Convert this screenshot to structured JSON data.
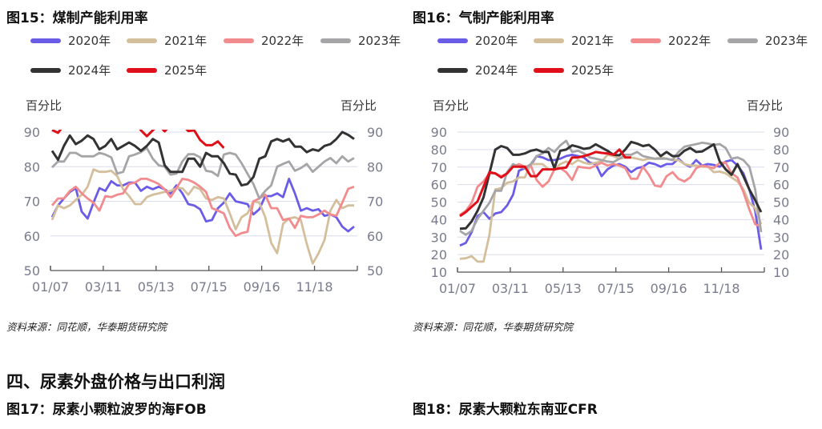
{
  "charts_text": [
    {
      "title": "图15：煤制产能利用率",
      "source": "资料来源：同花顺，华泰期货研究院"
    },
    {
      "title": "图16：气制产能利用率",
      "source": "资料来源：同花顺，华泰期货研究院"
    }
  ],
  "section_heading": "四、尿素外盘价格与出口利润",
  "next_figures": [
    "图17：尿素小颗粒波罗的海FOB",
    "图18：尿素大颗粒东南亚CFR"
  ],
  "legend": [
    {
      "name": "2020年",
      "color": "#6b5ce7"
    },
    {
      "name": "2021年",
      "color": "#d4bf9c"
    },
    {
      "name": "2022年",
      "color": "#f28b8e"
    },
    {
      "name": "2023年",
      "color": "#a5a5a8"
    },
    {
      "name": "2024年",
      "color": "#333333"
    },
    {
      "name": "2025年",
      "color": "#e0101a"
    }
  ],
  "chart_data": [
    {
      "type": "line",
      "title": "图15：煤制产能利用率",
      "ylabel": "百分比",
      "ylabel_right": "百分比",
      "ylim": [
        50,
        90
      ],
      "yticks": [
        90,
        80,
        70,
        60,
        50
      ],
      "xticks": [
        "01/07",
        "03/11",
        "05/13",
        "07/15",
        "09/16",
        "11/18"
      ],
      "x_unit": "weekly index from 01/07",
      "grid": true,
      "legend_position": "top",
      "series": [
        {
          "name": "2020年",
          "values": [
            65.4,
            68.8,
            70.8,
            72.7,
            73.8,
            67,
            65,
            69.6,
            73.8,
            73,
            75.8,
            74.6,
            74.6,
            75.4,
            75.4,
            73,
            74.2,
            73.5,
            74.2,
            73.5,
            72.3,
            74.6,
            72.3,
            69.2,
            68.8,
            67.7,
            64.2,
            64.6,
            68,
            69.6,
            72.3,
            70,
            69.6,
            69.2,
            66.2,
            67.7,
            71.5,
            71.5,
            72.3,
            71.2,
            76.5,
            72.3,
            67.3,
            68,
            67.3,
            67.7,
            65.8,
            66.2,
            65.4,
            62.7,
            61.3,
            62.7
          ]
        },
        {
          "name": "2021年",
          "values": [
            64.6,
            68.8,
            68,
            68.8,
            70.4,
            71.9,
            74.2,
            79.2,
            78.5,
            78.5,
            78.8,
            77.3,
            73.5,
            71.5,
            69.2,
            69.2,
            71.2,
            71.9,
            72.3,
            72.7,
            73,
            73.8,
            73.8,
            71.9,
            74.2,
            73.5,
            70.8,
            70.4,
            71.2,
            70.8,
            66.5,
            61.9,
            65.4,
            66.5,
            70,
            69.6,
            65.4,
            58,
            55,
            63.5,
            65,
            65.4,
            64.6,
            57.7,
            52,
            55,
            58.8,
            67.3,
            70.4,
            68,
            68.8,
            68.8
          ]
        },
        {
          "name": "2022年",
          "values": [
            68.8,
            70.8,
            70.8,
            73,
            74.2,
            72.3,
            70.8,
            69.6,
            67.3,
            71.5,
            71.2,
            71.9,
            72.3,
            75,
            75.4,
            76.5,
            76.5,
            75.8,
            75,
            73.5,
            71.2,
            73.8,
            76.5,
            76.2,
            75.4,
            74.2,
            72.7,
            68,
            67.3,
            66.5,
            62.3,
            60,
            60.8,
            61.2,
            70,
            70.8,
            71.9,
            68,
            68,
            64.6,
            65,
            62.3,
            65.8,
            65.4,
            65.4,
            66.2,
            67.3,
            66.2,
            65.8,
            69.6,
            73.6,
            74.2
          ]
        },
        {
          "name": "2023年",
          "values": [
            79.8,
            81.5,
            81.5,
            84,
            84,
            83,
            83,
            83,
            84,
            83.5,
            82.7,
            78,
            78.5,
            83,
            83.5,
            84.2,
            85.4,
            82.3,
            80.4,
            80,
            77.7,
            78,
            81.5,
            83.6,
            83.6,
            82.7,
            78.8,
            78.5,
            77.3,
            83.5,
            84,
            83.5,
            81,
            78,
            75,
            70.8,
            73,
            74.6,
            80,
            80.8,
            81.5,
            78.8,
            79.6,
            80.8,
            78.5,
            80,
            81.5,
            82.5,
            81,
            83,
            81.5,
            82.5
          ]
        },
        {
          "name": "2024年",
          "values": [
            84.6,
            82,
            86,
            89,
            86.5,
            87.5,
            89,
            88,
            85,
            86,
            88,
            85,
            86,
            87,
            86,
            84.6,
            86,
            88,
            87,
            80.4,
            78.5,
            78.5,
            78.5,
            82.3,
            82.3,
            80,
            84,
            83,
            83,
            81,
            78,
            77.7,
            74.6,
            75,
            77,
            82.3,
            83,
            87.3,
            88,
            87.3,
            88,
            85.8,
            85.8,
            84.2,
            85,
            84.6,
            86,
            86.5,
            88,
            90,
            89.2,
            88
          ]
        },
        {
          "name": "2025年",
          "values": [
            90.6,
            89.8,
            92,
            92.5,
            93,
            92.5,
            92,
            93,
            92.5,
            92,
            93,
            92.5,
            92,
            92.5,
            93,
            90.5,
            88.8,
            90.5,
            92,
            90.2,
            92,
            93,
            92,
            90.3,
            90.5,
            87.7,
            86.2,
            86.2,
            87.3,
            85.4
          ]
        }
      ]
    },
    {
      "type": "line",
      "title": "图16：气制产能利用率",
      "ylabel": "百分比",
      "ylabel_right": "百分比",
      "ylim": [
        10,
        90
      ],
      "yticks": [
        90,
        80,
        70,
        60,
        50,
        40,
        30,
        20,
        10
      ],
      "xticks": [
        "01/07",
        "03/11",
        "05/13",
        "07/15",
        "09/16",
        "11/18"
      ],
      "x_unit": "weekly index from 01/07",
      "grid": true,
      "legend_position": "top",
      "series": [
        {
          "name": "2020年",
          "values": [
            25.2,
            26.7,
            32.8,
            42,
            44.3,
            40.5,
            43.5,
            44.3,
            48.1,
            54.2,
            67.9,
            69.4,
            70.9,
            76.3,
            75.5,
            74,
            74,
            74.8,
            76.3,
            77,
            76.3,
            75.5,
            72.5,
            71.7,
            64.8,
            68.7,
            70.9,
            71.7,
            70.2,
            67.1,
            69.4,
            70.2,
            72.5,
            71.7,
            70.2,
            71.7,
            71.7,
            74.8,
            71.7,
            70.2,
            74,
            70.9,
            71.7,
            71.2,
            70.2,
            73.2,
            74,
            70.9,
            66.4,
            57.2,
            45,
            22.9
          ]
        },
        {
          "name": "2021年",
          "values": [
            17.6,
            17.9,
            19.1,
            16,
            16,
            31.3,
            57.2,
            58,
            61,
            61.8,
            64.1,
            64.1,
            71.7,
            71.7,
            71.7,
            68.7,
            68.7,
            71.7,
            73.2,
            71.7,
            74,
            72.5,
            71.7,
            72.5,
            73.2,
            77,
            76.3,
            74.8,
            75.5,
            75.5,
            74.8,
            74,
            74.8,
            74.8,
            75.5,
            74.8,
            74,
            74,
            71.7,
            70.9,
            70.9,
            70.2,
            70.2,
            67.1,
            67.4,
            66.4,
            64.1,
            61.8,
            57.2,
            49.6,
            46.6,
            37.4
          ]
        },
        {
          "name": "2022年",
          "values": [
            42.7,
            45,
            49.6,
            58.8,
            61.8,
            66.4,
            66.4,
            64.8,
            66.4,
            70.2,
            71.7,
            70.2,
            70.9,
            62.6,
            58.8,
            61.8,
            68.7,
            69.4,
            67.1,
            62.6,
            70.2,
            69.7,
            69.4,
            70.9,
            72.5,
            70.9,
            71.7,
            70.9,
            69.4,
            63.3,
            63.3,
            70.2,
            65.6,
            59.5,
            58.8,
            64.8,
            67.1,
            63.3,
            61.8,
            64.1,
            69.4,
            70.9,
            70.2,
            69.4,
            72.5,
            72.5,
            66.4,
            64.1,
            55.7,
            45.8,
            37.4,
            35.9
          ]
        },
        {
          "name": "2023年",
          "values": [
            33.6,
            31.3,
            33.6,
            40.5,
            45,
            49.6,
            56.5,
            56.5,
            67.1,
            71.7,
            70.2,
            69.4,
            71.7,
            76.3,
            77.8,
            80.9,
            78.6,
            82.4,
            85,
            78.6,
            79.3,
            77.8,
            75.5,
            74.8,
            74,
            73.2,
            72.8,
            74.8,
            77,
            77,
            78.6,
            76.3,
            75.5,
            74.8,
            74.8,
            74.8,
            74,
            78.6,
            81.6,
            82.4,
            83.1,
            83.9,
            83.4,
            82.7,
            83.1,
            80.9,
            74.8,
            75.5,
            74,
            70.2,
            57.2,
            32.8
          ]
        },
        {
          "name": "2024年",
          "values": [
            34.8,
            35,
            39,
            45,
            52.7,
            66.4,
            80,
            82,
            80.9,
            77,
            77,
            77.8,
            79.3,
            80,
            78.6,
            78.6,
            69.4,
            79.3,
            80,
            82.4,
            81.6,
            80.4,
            80.9,
            83,
            81.2,
            79.3,
            77,
            76.7,
            80,
            84.4,
            83.4,
            82,
            82.7,
            80,
            76.3,
            78.6,
            76.3,
            76.3,
            79.3,
            80.9,
            78.6,
            78.9,
            80.9,
            83,
            73.2,
            68.7,
            65.6,
            71.7,
            64.8,
            57.2,
            51.1,
            44.3
          ]
        },
        {
          "name": "2025年",
          "values": [
            42,
            44.3,
            47.3,
            50.4,
            58.8,
            67.1,
            66.4,
            64.1,
            66.4,
            70.2,
            70.2,
            70.2,
            64.8,
            64.8,
            68.7,
            68.7,
            68.7,
            69.4,
            69.7,
            75.5,
            75.5,
            76.3,
            77.3,
            78.6,
            78.1,
            77.8,
            77,
            80,
            75.5,
            75.5
          ]
        }
      ]
    }
  ]
}
